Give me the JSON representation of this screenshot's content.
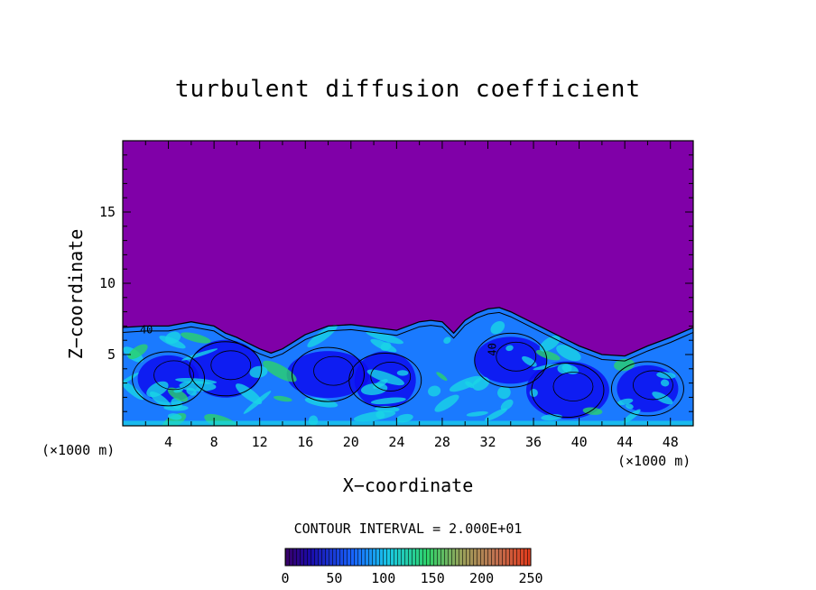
{
  "chart_data": {
    "type": "heatmap",
    "title": "turbulent diffusion coefficient",
    "xlabel": "X−coordinate",
    "ylabel": "Z−coordinate",
    "x_unit_left": "(×1000 m)",
    "x_unit_right": "(×1000 m)",
    "xlim": [
      0,
      50
    ],
    "ylim": [
      0,
      20
    ],
    "x_ticks": [
      4,
      8,
      12,
      16,
      20,
      24,
      28,
      32,
      36,
      40,
      44,
      48
    ],
    "y_ticks": [
      5,
      10,
      15
    ],
    "contour_interval_label": "CONTOUR INTERVAL = 2.000E+01",
    "colorbar": {
      "min": 0,
      "max": 250,
      "ticks": [
        0,
        50,
        100,
        150,
        200,
        250
      ]
    },
    "contour_labels": [
      "40",
      "40"
    ],
    "mixed_layer_top": {
      "x": [
        0,
        2,
        4,
        6,
        8,
        9,
        10,
        11,
        12,
        13,
        14,
        16,
        18,
        20,
        22,
        24,
        26,
        27,
        28,
        29,
        30,
        31,
        32,
        33,
        34,
        35,
        36,
        38,
        40,
        42,
        44,
        46,
        48,
        50
      ],
      "z": [
        6.9,
        7.0,
        7.0,
        7.3,
        7.0,
        6.5,
        6.2,
        5.8,
        5.4,
        5.1,
        5.4,
        6.4,
        7.0,
        7.1,
        6.9,
        6.7,
        7.3,
        7.4,
        7.3,
        6.5,
        7.4,
        7.9,
        8.2,
        8.3,
        8.0,
        7.6,
        7.2,
        6.4,
        5.6,
        5.0,
        4.9,
        5.6,
        6.2,
        6.9
      ]
    },
    "colors": {
      "background": "#8000a8",
      "deep_blue": "#0d0df0",
      "mid_blue": "#1a7aff",
      "cyan": "#19d6e6",
      "green": "#2bd36b"
    }
  }
}
